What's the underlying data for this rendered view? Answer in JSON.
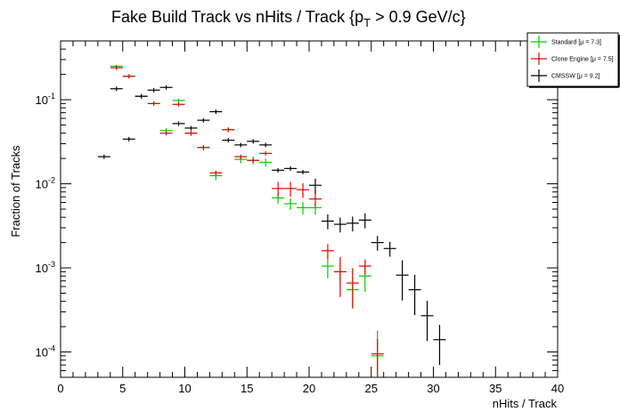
{
  "chart_data": {
    "type": "scatter",
    "title": "Fake Build Track vs nHits / Track {p",
    "title_sub": "T",
    "title_tail": " > 0.9 GeV/c}",
    "xlabel": "nHits / Track",
    "ylabel": "Fraction of Tracks",
    "xlim": [
      0,
      40
    ],
    "ylim": [
      5e-05,
      0.5
    ],
    "y_scale": "log",
    "grid": false,
    "legend_position": "top-right",
    "x_ticks": [
      "0",
      "5",
      "10",
      "15",
      "20",
      "25",
      "30",
      "35",
      "40"
    ],
    "y_ticks": [
      {
        "base": "10",
        "exp": "-1",
        "value": 0.1
      },
      {
        "base": "10",
        "exp": "-2",
        "value": 0.01
      },
      {
        "base": "10",
        "exp": "-3",
        "value": 0.001
      },
      {
        "base": "10",
        "exp": "-4",
        "value": 0.0001
      }
    ],
    "series": [
      {
        "name": "Standard  [μ = 7.3]",
        "color": "#00cc00",
        "x": [
          4.5,
          5.5,
          6.5,
          7.5,
          8.5,
          9.5,
          10.5,
          11.5,
          12.5,
          13.5,
          14.5,
          15.5,
          16.5,
          17.5,
          18.5,
          19.5,
          20.5,
          21.5,
          22.5,
          23.5,
          24.5,
          25.5
        ],
        "y": [
          0.25,
          0.19,
          0.11,
          0.09,
          0.043,
          0.098,
          0.04,
          0.027,
          0.0125,
          0.044,
          0.0195,
          0.019,
          0.018,
          0.0068,
          0.0058,
          0.0052,
          0.0052,
          0.00105,
          0.0009,
          0.00055,
          0.0008,
          9e-05
        ],
        "err": [
          0.01,
          0.01,
          0.005,
          0.004,
          0.003,
          0.005,
          0.003,
          0.002,
          0.0015,
          0.003,
          0.002,
          0.002,
          0.002,
          0.001,
          0.0009,
          0.0009,
          0.0009,
          0.0003,
          0.00028,
          0.00022,
          0.00028,
          9e-05
        ]
      },
      {
        "name": "Clone Engine  [μ = 7.5]",
        "color": "#ee0000",
        "x": [
          4.5,
          5.5,
          6.5,
          7.5,
          8.5,
          9.5,
          10.5,
          11.5,
          12.5,
          13.5,
          14.5,
          15.5,
          16.5,
          17.5,
          18.5,
          19.5,
          20.5,
          21.5,
          22.5,
          23.5,
          24.5,
          25.5
        ],
        "y": [
          0.24,
          0.19,
          0.11,
          0.09,
          0.04,
          0.088,
          0.04,
          0.027,
          0.0135,
          0.044,
          0.021,
          0.019,
          0.023,
          0.0088,
          0.0088,
          0.0085,
          0.0066,
          0.0016,
          0.0009,
          0.00066,
          0.00105,
          9.5e-05
        ]
      },
      {
        "name": "CMSSW  [μ = 9.2]",
        "color": "#000000",
        "x": [
          3.5,
          4.5,
          5.5,
          6.5,
          7.5,
          8.5,
          9.5,
          10.5,
          11.5,
          12.5,
          13.5,
          14.5,
          15.5,
          16.5,
          17.5,
          18.5,
          19.5,
          20.5,
          21.5,
          22.5,
          23.5,
          24.5,
          25.5,
          26.5,
          27.5,
          28.5,
          29.5,
          30.5
        ],
        "y": [
          0.021,
          0.135,
          0.034,
          0.11,
          0.13,
          0.14,
          0.052,
          0.046,
          0.057,
          0.072,
          0.033,
          0.029,
          0.032,
          0.029,
          0.0145,
          0.0152,
          0.0138,
          0.0096,
          0.0036,
          0.0033,
          0.0034,
          0.0037,
          0.002,
          0.0017,
          0.00082,
          0.00055,
          0.00027,
          0.00014
        ]
      }
    ]
  }
}
